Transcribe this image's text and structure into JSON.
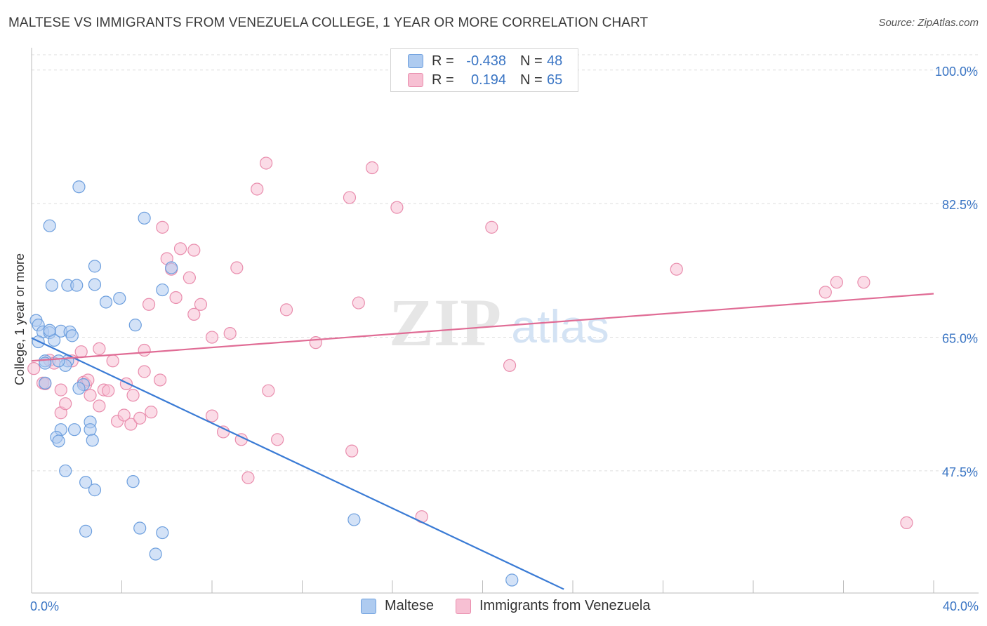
{
  "title": "MALTESE VS IMMIGRANTS FROM VENEZUELA COLLEGE, 1 YEAR OR MORE CORRELATION CHART",
  "source": "Source: ZipAtlas.com",
  "colors": {
    "maltese_fill": "#aecbf0",
    "maltese_stroke": "#6d9fde",
    "maltese_line": "#3a7bd5",
    "venezuela_fill": "#f7c0d3",
    "venezuela_stroke": "#e98dad",
    "venezuela_line": "#e06c95",
    "value_text": "#3a75c4",
    "grid": "#dddddd"
  },
  "legend": {
    "rows": [
      {
        "r_label": "R =",
        "r_value": "-0.438",
        "n_label": "N =",
        "n_value": "48"
      },
      {
        "r_label": "R =",
        "r_value": "0.194",
        "n_label": "N =",
        "n_value": "65"
      }
    ]
  },
  "watermark": {
    "zip": "ZIP",
    "atlas": "atlas"
  },
  "chart_data": {
    "type": "scatter",
    "title": "MALTESE VS IMMIGRANTS FROM VENEZUELA COLLEGE, 1 YEAR OR MORE CORRELATION CHART",
    "xlabel": "",
    "ylabel": "College, 1 year or more",
    "xlim": [
      0,
      40
    ],
    "ylim": [
      31.5,
      102
    ],
    "x_tick_labels": [
      "0.0%",
      "40.0%"
    ],
    "y_ticks": [
      47.5,
      65.0,
      82.5,
      100.0
    ],
    "y_tick_labels": [
      "47.5%",
      "65.0%",
      "82.5%",
      "100.0%"
    ],
    "legend_position": "top-center",
    "series": [
      {
        "name": "Maltese",
        "r": -0.438,
        "n": 48,
        "trend": {
          "x": [
            0.0,
            23.6
          ],
          "y": [
            64.9,
            32.0
          ]
        },
        "points": [
          {
            "x": 0.2,
            "y": 67.2
          },
          {
            "x": 0.3,
            "y": 66.6
          },
          {
            "x": 0.5,
            "y": 65.7
          },
          {
            "x": 0.3,
            "y": 64.4
          },
          {
            "x": 0.6,
            "y": 61.9
          },
          {
            "x": 0.8,
            "y": 65.6
          },
          {
            "x": 1.0,
            "y": 64.6
          },
          {
            "x": 1.3,
            "y": 65.8
          },
          {
            "x": 1.7,
            "y": 65.7
          },
          {
            "x": 1.8,
            "y": 65.2
          },
          {
            "x": 1.6,
            "y": 61.9
          },
          {
            "x": 1.5,
            "y": 61.3
          },
          {
            "x": 0.9,
            "y": 71.8
          },
          {
            "x": 1.6,
            "y": 71.8
          },
          {
            "x": 2.0,
            "y": 71.8
          },
          {
            "x": 2.8,
            "y": 74.3
          },
          {
            "x": 2.8,
            "y": 71.9
          },
          {
            "x": 3.3,
            "y": 69.6
          },
          {
            "x": 3.9,
            "y": 70.1
          },
          {
            "x": 0.8,
            "y": 79.6
          },
          {
            "x": 2.1,
            "y": 84.7
          },
          {
            "x": 5.0,
            "y": 80.6
          },
          {
            "x": 4.6,
            "y": 66.6
          },
          {
            "x": 5.8,
            "y": 71.2
          },
          {
            "x": 6.2,
            "y": 74.1
          },
          {
            "x": 2.3,
            "y": 58.8
          },
          {
            "x": 2.1,
            "y": 58.3
          },
          {
            "x": 0.6,
            "y": 59.0
          },
          {
            "x": 1.9,
            "y": 52.9
          },
          {
            "x": 1.3,
            "y": 52.9
          },
          {
            "x": 1.1,
            "y": 51.9
          },
          {
            "x": 2.6,
            "y": 53.9
          },
          {
            "x": 2.6,
            "y": 52.9
          },
          {
            "x": 2.7,
            "y": 51.5
          },
          {
            "x": 1.2,
            "y": 51.4
          },
          {
            "x": 1.5,
            "y": 47.5
          },
          {
            "x": 2.4,
            "y": 46.0
          },
          {
            "x": 2.8,
            "y": 45.0
          },
          {
            "x": 4.5,
            "y": 46.1
          },
          {
            "x": 4.8,
            "y": 40.0
          },
          {
            "x": 2.4,
            "y": 39.6
          },
          {
            "x": 5.8,
            "y": 39.4
          },
          {
            "x": 5.5,
            "y": 36.6
          },
          {
            "x": 14.3,
            "y": 41.1
          },
          {
            "x": 21.3,
            "y": 33.2
          },
          {
            "x": 0.6,
            "y": 61.6
          },
          {
            "x": 1.2,
            "y": 61.9
          },
          {
            "x": 0.8,
            "y": 65.9
          }
        ]
      },
      {
        "name": "Immigrants from Venezuela",
        "r": 0.194,
        "n": 65,
        "trend": {
          "x": [
            0.0,
            40.0
          ],
          "y": [
            61.9,
            70.7
          ]
        },
        "points": [
          {
            "x": 0.1,
            "y": 60.9
          },
          {
            "x": 0.5,
            "y": 59.0
          },
          {
            "x": 0.6,
            "y": 58.9
          },
          {
            "x": 0.8,
            "y": 62.0
          },
          {
            "x": 1.0,
            "y": 61.6
          },
          {
            "x": 1.3,
            "y": 58.1
          },
          {
            "x": 1.3,
            "y": 55.1
          },
          {
            "x": 1.5,
            "y": 56.3
          },
          {
            "x": 1.8,
            "y": 61.9
          },
          {
            "x": 2.3,
            "y": 59.1
          },
          {
            "x": 2.4,
            "y": 58.8
          },
          {
            "x": 2.6,
            "y": 57.4
          },
          {
            "x": 3.0,
            "y": 56.0
          },
          {
            "x": 3.0,
            "y": 63.5
          },
          {
            "x": 2.2,
            "y": 63.1
          },
          {
            "x": 3.6,
            "y": 61.9
          },
          {
            "x": 3.2,
            "y": 58.1
          },
          {
            "x": 3.4,
            "y": 58.0
          },
          {
            "x": 4.2,
            "y": 58.9
          },
          {
            "x": 4.5,
            "y": 57.4
          },
          {
            "x": 3.8,
            "y": 54.0
          },
          {
            "x": 4.1,
            "y": 54.8
          },
          {
            "x": 4.4,
            "y": 53.6
          },
          {
            "x": 4.8,
            "y": 54.4
          },
          {
            "x": 5.0,
            "y": 60.5
          },
          {
            "x": 5.0,
            "y": 63.3
          },
          {
            "x": 5.3,
            "y": 55.2
          },
          {
            "x": 5.7,
            "y": 59.4
          },
          {
            "x": 5.2,
            "y": 69.3
          },
          {
            "x": 6.0,
            "y": 75.3
          },
          {
            "x": 5.8,
            "y": 79.4
          },
          {
            "x": 6.4,
            "y": 70.2
          },
          {
            "x": 6.6,
            "y": 76.6
          },
          {
            "x": 7.2,
            "y": 76.4
          },
          {
            "x": 7.0,
            "y": 72.8
          },
          {
            "x": 7.5,
            "y": 69.3
          },
          {
            "x": 7.2,
            "y": 68.0
          },
          {
            "x": 8.0,
            "y": 65.0
          },
          {
            "x": 8.0,
            "y": 54.7
          },
          {
            "x": 8.5,
            "y": 52.6
          },
          {
            "x": 8.8,
            "y": 65.5
          },
          {
            "x": 9.1,
            "y": 74.1
          },
          {
            "x": 9.3,
            "y": 51.6
          },
          {
            "x": 9.6,
            "y": 46.6
          },
          {
            "x": 10.4,
            "y": 87.8
          },
          {
            "x": 10.5,
            "y": 58.0
          },
          {
            "x": 10.9,
            "y": 51.6
          },
          {
            "x": 11.3,
            "y": 68.6
          },
          {
            "x": 12.6,
            "y": 64.3
          },
          {
            "x": 14.1,
            "y": 83.3
          },
          {
            "x": 14.2,
            "y": 50.1
          },
          {
            "x": 14.5,
            "y": 69.5
          },
          {
            "x": 15.1,
            "y": 87.2
          },
          {
            "x": 16.2,
            "y": 82.0
          },
          {
            "x": 17.3,
            "y": 41.5
          },
          {
            "x": 20.4,
            "y": 79.4
          },
          {
            "x": 21.2,
            "y": 61.3
          },
          {
            "x": 28.6,
            "y": 73.9
          },
          {
            "x": 35.2,
            "y": 70.9
          },
          {
            "x": 35.7,
            "y": 72.2
          },
          {
            "x": 36.9,
            "y": 72.2
          },
          {
            "x": 38.8,
            "y": 40.7
          },
          {
            "x": 10.0,
            "y": 84.4
          },
          {
            "x": 6.2,
            "y": 73.9
          },
          {
            "x": 2.5,
            "y": 59.4
          }
        ]
      }
    ]
  }
}
